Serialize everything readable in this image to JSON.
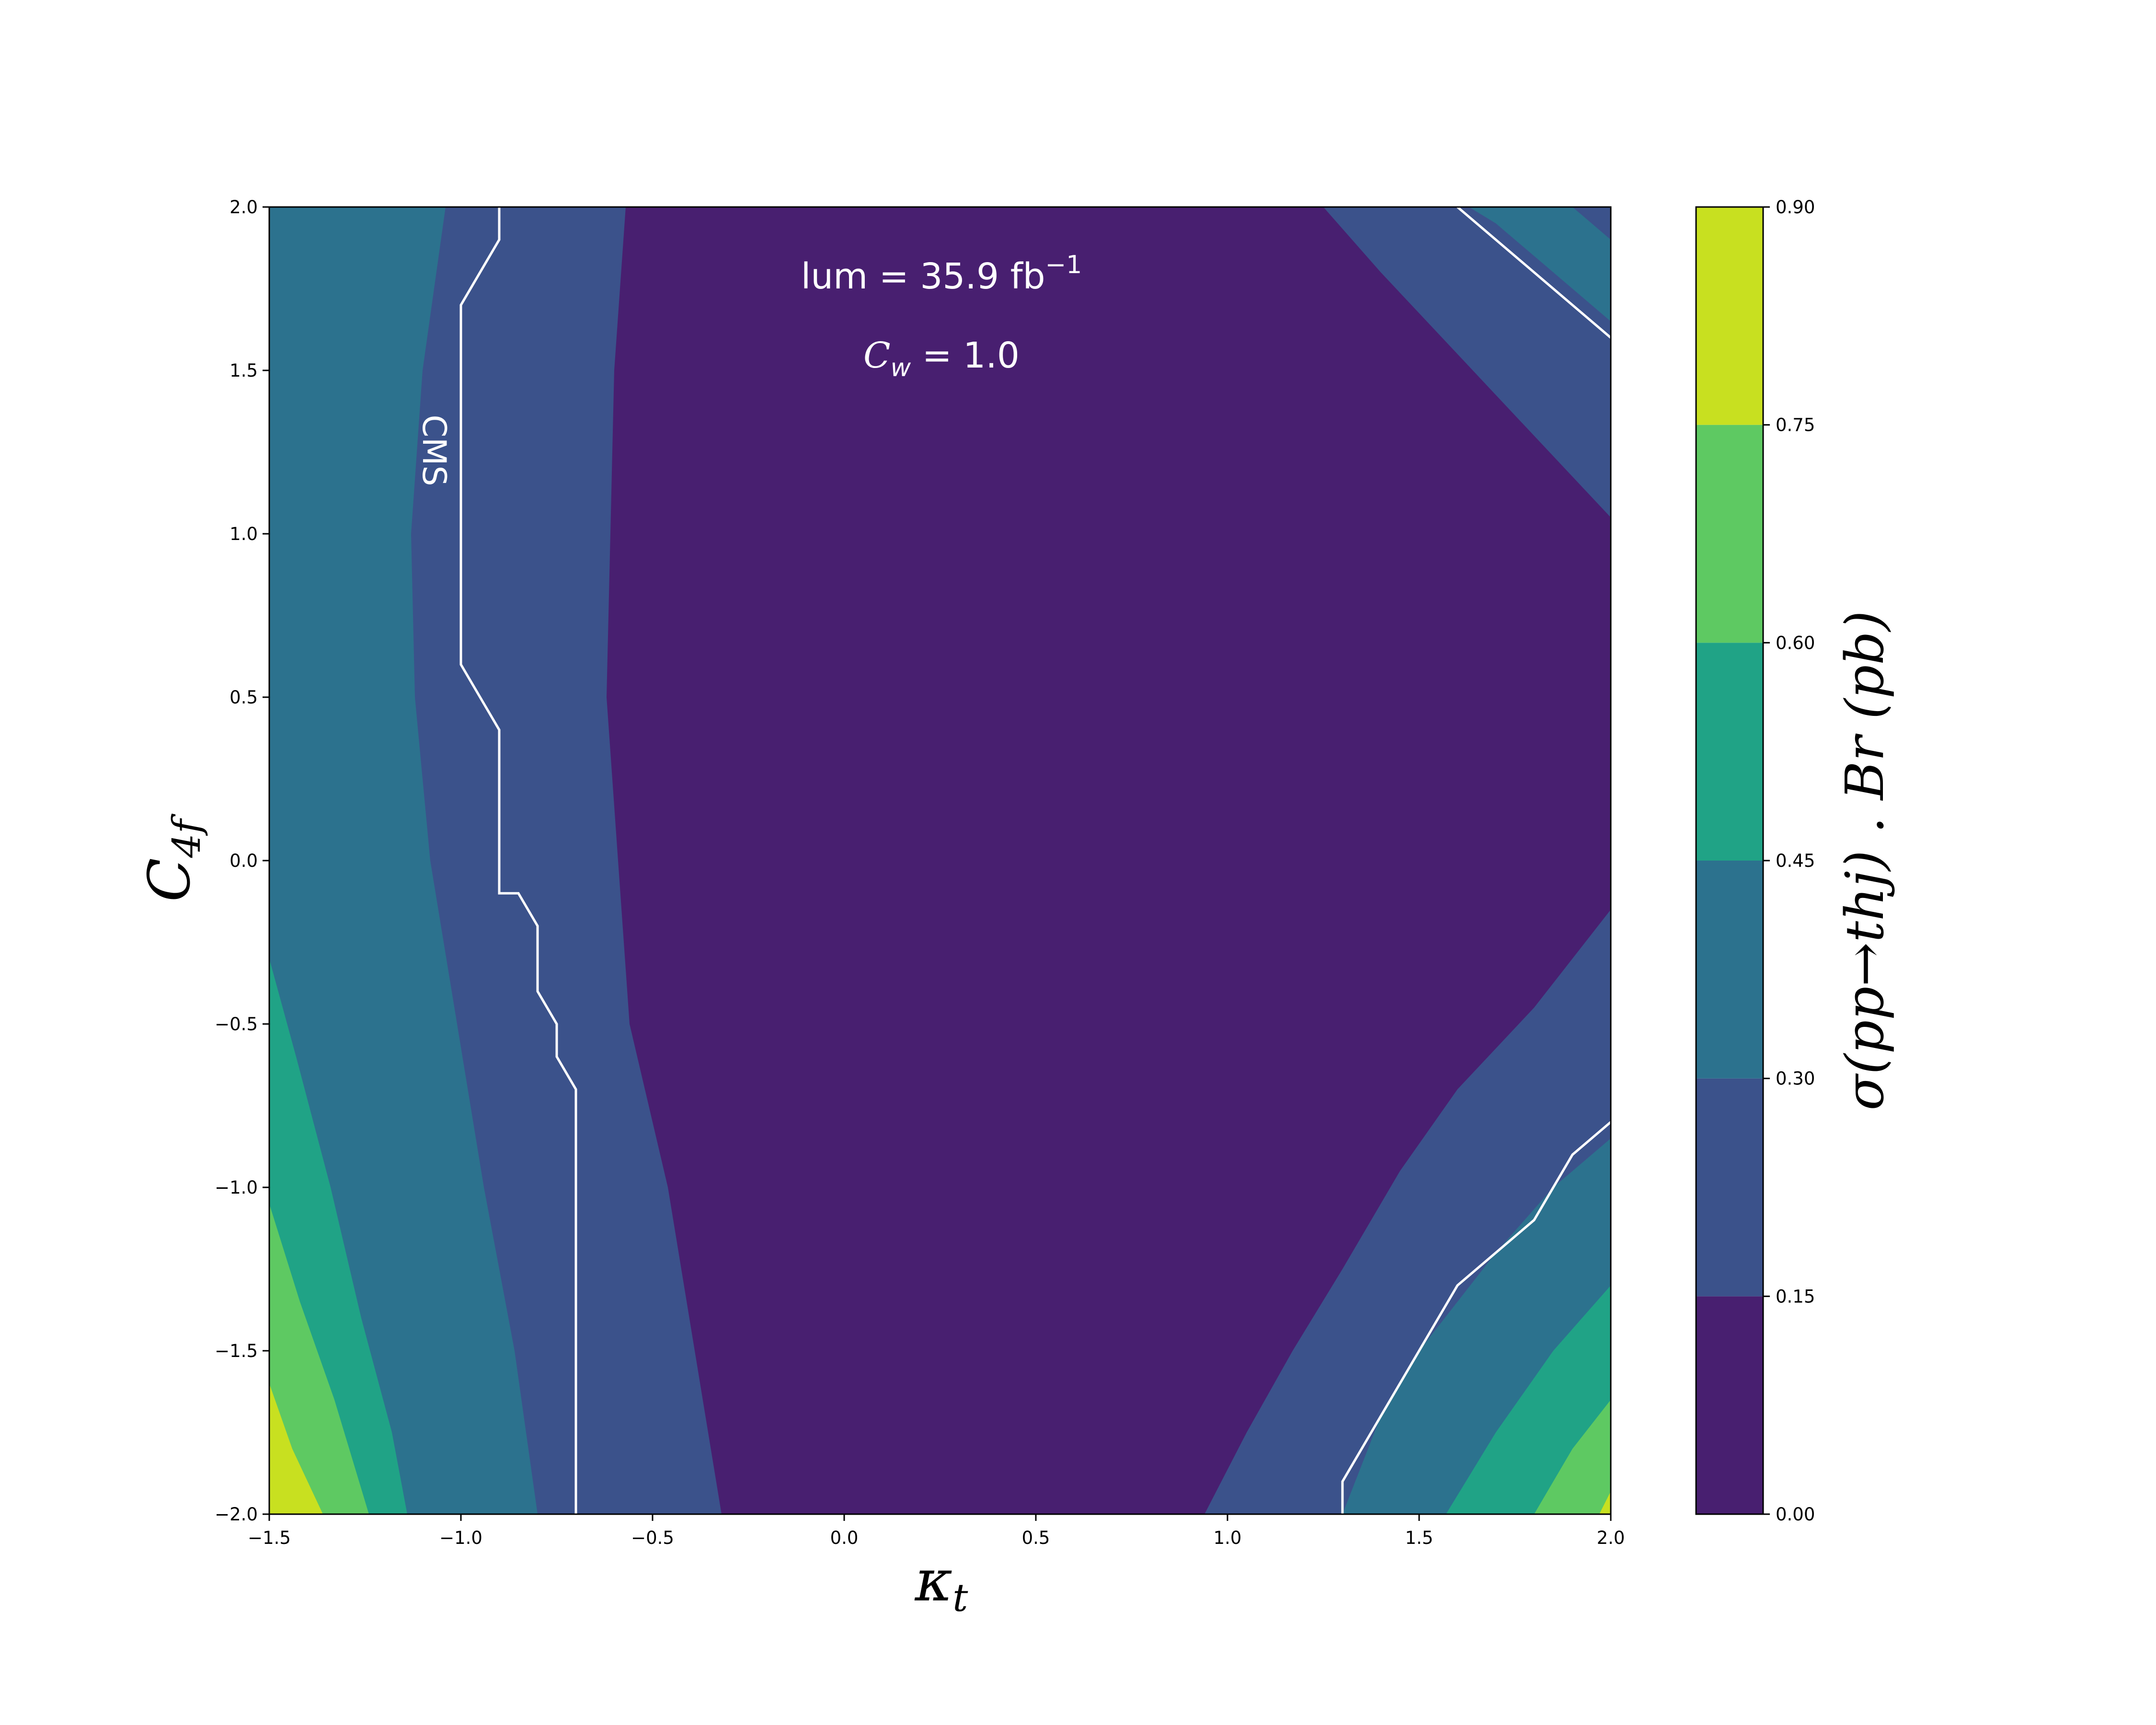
{
  "chart_data": {
    "type": "heatmap",
    "subtype": "filled-contour",
    "xlabel": "κ_t",
    "ylabel": "C_4f",
    "colorbar_label": "σ(pp→thj) . Br   (pb)",
    "xlim": [
      -1.5,
      2.0
    ],
    "ylim": [
      -2.0,
      2.0
    ],
    "x_ticks": [
      "−1.5",
      "−1.0",
      "−0.5",
      "0.0",
      "0.5",
      "1.0",
      "1.5",
      "2.0"
    ],
    "y_ticks": [
      "−2.0",
      "−1.5",
      "−1.0",
      "−0.5",
      "0.0",
      "0.5",
      "1.0",
      "1.5",
      "2.0"
    ],
    "colorbar": {
      "levels": [
        0.0,
        0.15,
        0.3,
        0.45,
        0.6,
        0.75,
        0.9
      ],
      "tick_labels": [
        "0.00",
        "0.15",
        "0.30",
        "0.45",
        "0.60",
        "0.75",
        "0.90"
      ],
      "colors": [
        "#481f70",
        "#3b528b",
        "#2c728e",
        "#20a386",
        "#5ec962",
        "#c8e020"
      ]
    },
    "annotations": {
      "lum_prefix": "lum = 35.9 fb",
      "lum_exponent": "−1",
      "cw_symbol": "C",
      "cw_subscript": "w",
      "cw_value": " = 1.0",
      "contour_label": "CMS"
    },
    "regions": [
      {
        "level": 1,
        "points": [
          [
            -1.5,
            2.0
          ],
          [
            -0.57,
            2.0
          ],
          [
            -0.6,
            1.5
          ],
          [
            -0.62,
            0.5
          ],
          [
            -0.56,
            -0.5
          ],
          [
            -0.46,
            -1.0
          ],
          [
            -0.39,
            -1.5
          ],
          [
            -0.32,
            -2.0
          ],
          [
            -1.5,
            -2.0
          ]
        ]
      },
      {
        "level": 2,
        "points": [
          [
            -1.5,
            2.0
          ],
          [
            -1.04,
            2.0
          ],
          [
            -1.1,
            1.5
          ],
          [
            -1.13,
            1.0
          ],
          [
            -1.12,
            0.5
          ],
          [
            -1.08,
            0.0
          ],
          [
            -1.01,
            -0.5
          ],
          [
            -0.94,
            -1.0
          ],
          [
            -0.86,
            -1.5
          ],
          [
            -0.8,
            -2.0
          ],
          [
            -1.5,
            -2.0
          ]
        ]
      },
      {
        "level": 3,
        "points": [
          [
            -1.5,
            -0.3
          ],
          [
            -1.43,
            -0.6
          ],
          [
            -1.34,
            -1.0
          ],
          [
            -1.26,
            -1.4
          ],
          [
            -1.18,
            -1.75
          ],
          [
            -1.14,
            -2.0
          ],
          [
            -1.5,
            -2.0
          ]
        ]
      },
      {
        "level": 4,
        "points": [
          [
            -1.5,
            -1.05
          ],
          [
            -1.42,
            -1.35
          ],
          [
            -1.33,
            -1.65
          ],
          [
            -1.24,
            -2.0
          ],
          [
            -1.5,
            -2.0
          ]
        ]
      },
      {
        "level": 5,
        "points": [
          [
            -1.5,
            -1.6
          ],
          [
            -1.44,
            -1.8
          ],
          [
            -1.36,
            -2.0
          ],
          [
            -1.5,
            -2.0
          ]
        ]
      },
      {
        "level": 1,
        "points": [
          [
            1.25,
            2.0
          ],
          [
            2.0,
            2.0
          ],
          [
            2.0,
            1.05
          ],
          [
            1.8,
            1.3
          ],
          [
            1.6,
            1.55
          ],
          [
            1.4,
            1.8
          ]
        ]
      },
      {
        "level": 2,
        "points": [
          [
            1.63,
            2.0
          ],
          [
            1.9,
            2.0
          ],
          [
            2.0,
            1.9
          ],
          [
            2.0,
            1.65
          ],
          [
            1.8,
            1.85
          ],
          [
            1.7,
            1.95
          ]
        ]
      },
      {
        "level": 1,
        "points": [
          [
            2.0,
            -0.15
          ],
          [
            1.8,
            -0.45
          ],
          [
            1.6,
            -0.7
          ],
          [
            1.45,
            -0.95
          ],
          [
            1.3,
            -1.25
          ],
          [
            1.17,
            -1.5
          ],
          [
            1.05,
            -1.75
          ],
          [
            0.94,
            -2.0
          ],
          [
            2.0,
            -2.0
          ]
        ]
      },
      {
        "level": 2,
        "points": [
          [
            2.0,
            -0.85
          ],
          [
            1.85,
            -1.0
          ],
          [
            1.7,
            -1.2
          ],
          [
            1.5,
            -1.5
          ],
          [
            1.4,
            -1.7
          ],
          [
            1.3,
            -2.0
          ],
          [
            2.0,
            -2.0
          ]
        ]
      },
      {
        "level": 3,
        "points": [
          [
            2.0,
            -1.3
          ],
          [
            1.85,
            -1.5
          ],
          [
            1.7,
            -1.75
          ],
          [
            1.57,
            -2.0
          ],
          [
            2.0,
            -2.0
          ]
        ]
      },
      {
        "level": 4,
        "points": [
          [
            2.0,
            -1.65
          ],
          [
            1.9,
            -1.8
          ],
          [
            1.8,
            -2.0
          ],
          [
            2.0,
            -2.0
          ]
        ]
      },
      {
        "level": 5,
        "points": [
          [
            2.0,
            -1.93
          ],
          [
            1.97,
            -2.0
          ],
          [
            2.0,
            -2.0
          ]
        ]
      }
    ],
    "cms_contours": [
      [
        [
          -0.9,
          2.0
        ],
        [
          -0.9,
          1.9
        ],
        [
          -1.0,
          1.7
        ],
        [
          -1.0,
          0.6
        ],
        [
          -0.9,
          0.4
        ],
        [
          -0.9,
          -0.1
        ],
        [
          -0.85,
          -0.1
        ],
        [
          -0.8,
          -0.2
        ],
        [
          -0.8,
          -0.4
        ],
        [
          -0.75,
          -0.5
        ],
        [
          -0.75,
          -0.6
        ],
        [
          -0.7,
          -0.7
        ],
        [
          -0.7,
          -2.0
        ]
      ],
      [
        [
          1.6,
          2.0
        ],
        [
          2.0,
          1.6
        ]
      ],
      [
        [
          1.3,
          -2.0
        ],
        [
          1.3,
          -1.9
        ],
        [
          1.6,
          -1.3
        ],
        [
          1.8,
          -1.1
        ],
        [
          1.9,
          -0.9
        ],
        [
          2.0,
          -0.8
        ]
      ]
    ]
  }
}
